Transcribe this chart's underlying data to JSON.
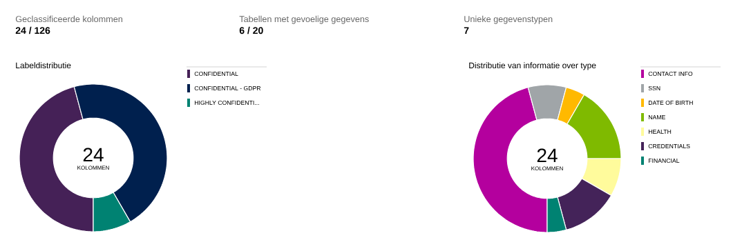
{
  "chart_data": [
    {
      "type": "other",
      "title": "Geclassificeerde kolommen",
      "annotations": [
        "24 / 126"
      ]
    },
    {
      "type": "other",
      "title": "Tabellen met gevoelige gegevens",
      "annotations": [
        "6 / 20"
      ]
    },
    {
      "type": "other",
      "title": "Unieke gegevenstypen",
      "annotations": [
        "7"
      ]
    },
    {
      "type": "donut",
      "title": "Labeldistributie",
      "categories": [
        "CONFIDENTIAL",
        "CONFIDENTIAL - GDPR",
        "HIGHLY CONFIDENTI..."
      ],
      "values": [
        45.83,
        45.83,
        8.34
      ],
      "colors": [
        "#452157",
        "#00204e",
        "#008272"
      ],
      "legend": "right",
      "annotations": [
        "24",
        "KOLOMMEN"
      ]
    },
    {
      "type": "donut",
      "title": "Distributie van informatie over type",
      "categories": [
        "CONTACT INFO",
        "SSN",
        "DATE OF BIRTH",
        "NAME",
        "HEALTH",
        "CREDENTIALS",
        "FINANCIAL"
      ],
      "values": [
        45.83,
        8.33,
        4.17,
        16.67,
        8.33,
        12.5,
        4.17
      ],
      "colors": [
        "#b4009e",
        "#a0a5a8",
        "#ffb900",
        "#7fba00",
        "#fffb9c",
        "#442359",
        "#008272"
      ],
      "legend": "right",
      "annotations": [
        "24",
        "KOLOMMEN"
      ]
    }
  ]
}
